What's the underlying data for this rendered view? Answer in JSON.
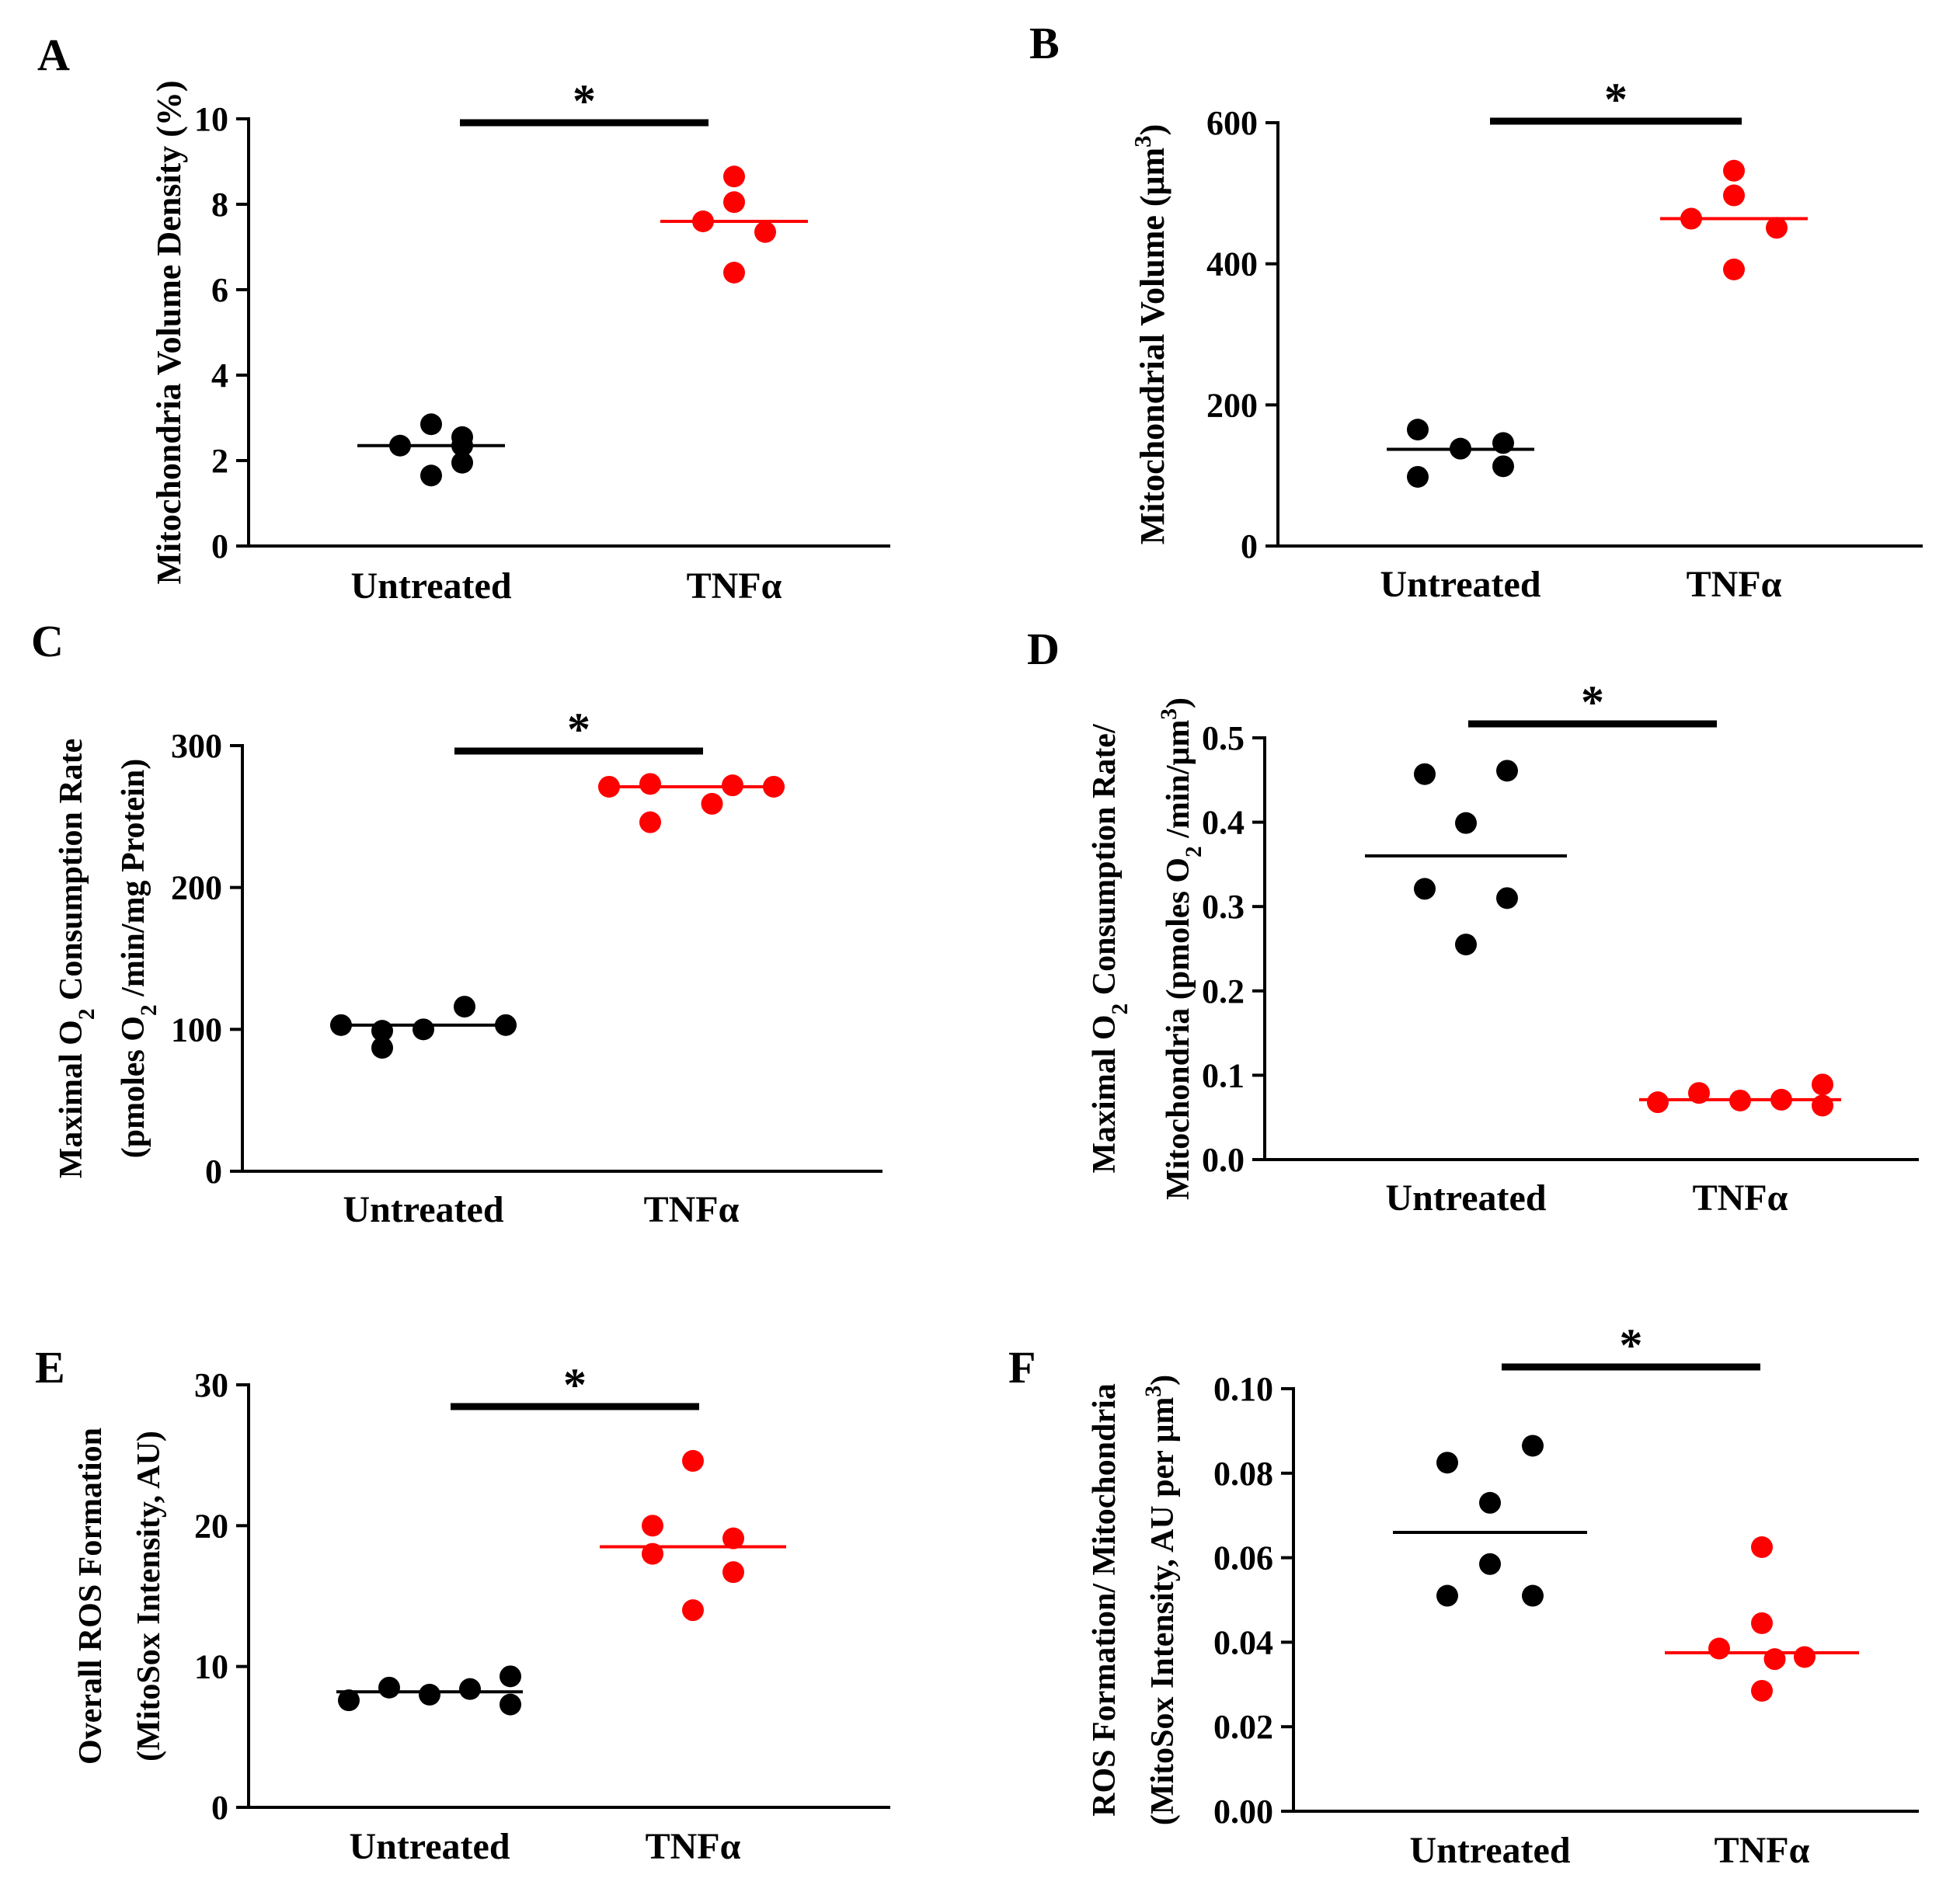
{
  "figure": {
    "colors": {
      "untreated": "#000000",
      "tnf": "#ff0000"
    }
  },
  "chart_data": [
    {
      "type": "scatter",
      "panel_label": "A",
      "ylabel_lines": [
        "Mitochondria Volume Density (%)"
      ],
      "ylim": [
        0,
        10
      ],
      "yticks": [
        "0",
        "2",
        "4",
        "6",
        "8",
        "10"
      ],
      "categories": [
        "Untreated",
        "TNFα"
      ],
      "significance": "*",
      "series": [
        {
          "name": "Untreated",
          "color": "#000000",
          "mean": 2.35,
          "points": [
            [
              0,
              2.85
            ],
            [
              -1,
              2.35
            ],
            [
              1,
              2.35
            ],
            [
              0,
              1.65
            ],
            [
              1,
              2.55
            ],
            [
              1,
              1.95
            ]
          ]
        },
        {
          "name": "TNFα",
          "color": "#ff0000",
          "mean": 7.6,
          "points": [
            [
              0,
              8.65
            ],
            [
              0,
              8.05
            ],
            [
              -1,
              7.6
            ],
            [
              1,
              7.35
            ],
            [
              0,
              6.4
            ]
          ]
        }
      ]
    },
    {
      "type": "scatter",
      "panel_label": "B",
      "ylabel_lines": [
        "Mitochondrial Volume (μm3)"
      ],
      "ylim": [
        0,
        600
      ],
      "yticks": [
        "0",
        "200",
        "400",
        "600"
      ],
      "categories": [
        "Untreated",
        "TNFα"
      ],
      "significance": "*",
      "series": [
        {
          "name": "Untreated",
          "color": "#000000",
          "mean": 137,
          "points": [
            [
              -1,
              165
            ],
            [
              0,
              138
            ],
            [
              1,
              146
            ],
            [
              -1,
              98
            ],
            [
              1,
              113
            ]
          ]
        },
        {
          "name": "TNFα",
          "color": "#ff0000",
          "mean": 464,
          "points": [
            [
              0,
              532
            ],
            [
              0,
              497
            ],
            [
              -1,
              464
            ],
            [
              1,
              451
            ],
            [
              0,
              392
            ]
          ]
        }
      ]
    },
    {
      "type": "scatter",
      "panel_label": "C",
      "ylabel_lines": [
        "Maximal O2 Consumption Rate",
        "(pmoles O2 /min/mg Protein)"
      ],
      "ylim": [
        0,
        300
      ],
      "yticks": [
        "0",
        "100",
        "200",
        "300"
      ],
      "categories": [
        "Untreated",
        "TNFα"
      ],
      "significance": "*",
      "series": [
        {
          "name": "Untreated",
          "color": "#000000",
          "mean": 103,
          "points": [
            [
              -2,
              103
            ],
            [
              -1,
              99
            ],
            [
              0,
              100
            ],
            [
              1,
              116
            ],
            [
              2,
              103
            ],
            [
              -1,
              87
            ]
          ]
        },
        {
          "name": "TNFα",
          "color": "#ff0000",
          "mean": 271,
          "points": [
            [
              -2,
              271
            ],
            [
              -1,
              273
            ],
            [
              1,
              272
            ],
            [
              2,
              271
            ],
            [
              -1,
              246
            ],
            [
              0.5,
              259
            ]
          ]
        }
      ]
    },
    {
      "type": "scatter",
      "panel_label": "D",
      "ylabel_lines": [
        "Maximal O2 Consumption Rate/",
        "Mitochondria (pmoles O2 /min/μm3)"
      ],
      "ylim": [
        0,
        0.5
      ],
      "yticks": [
        "0.0",
        "0.1",
        "0.2",
        "0.3",
        "0.4",
        "0.5"
      ],
      "categories": [
        "Untreated",
        "TNFα"
      ],
      "significance": "*",
      "series": [
        {
          "name": "Untreated",
          "color": "#000000",
          "mean": 0.36,
          "points": [
            [
              -1,
              0.457
            ],
            [
              1,
              0.461
            ],
            [
              0,
              0.399
            ],
            [
              -1,
              0.321
            ],
            [
              1,
              0.31
            ],
            [
              0,
              0.255
            ]
          ]
        },
        {
          "name": "TNFα",
          "color": "#ff0000",
          "mean": 0.071,
          "points": [
            [
              -2,
              0.068
            ],
            [
              -1,
              0.079
            ],
            [
              0,
              0.07
            ],
            [
              1,
              0.071
            ],
            [
              2,
              0.089
            ],
            [
              2,
              0.064
            ]
          ]
        }
      ]
    },
    {
      "type": "scatter",
      "panel_label": "E",
      "ylabel_lines": [
        "Overall ROS Formation",
        "(MitoSox Intensity, AU)"
      ],
      "ylim": [
        0,
        30
      ],
      "yticks": [
        "0",
        "10",
        "20",
        "30"
      ],
      "categories": [
        "Untreated",
        "TNFα"
      ],
      "significance": "*",
      "series": [
        {
          "name": "Untreated",
          "color": "#000000",
          "mean": 8.2,
          "points": [
            [
              -2,
              7.6
            ],
            [
              -1,
              8.5
            ],
            [
              0,
              8.0
            ],
            [
              1,
              8.4
            ],
            [
              2,
              9.3
            ],
            [
              2,
              7.3
            ]
          ]
        },
        {
          "name": "TNFα",
          "color": "#ff0000",
          "mean": 18.5,
          "points": [
            [
              0,
              24.6
            ],
            [
              -1,
              20.0
            ],
            [
              1,
              19.1
            ],
            [
              -1,
              18.0
            ],
            [
              1,
              16.7
            ],
            [
              0,
              14.0
            ]
          ]
        }
      ]
    },
    {
      "type": "scatter",
      "panel_label": "F",
      "ylabel_lines": [
        "ROS Formation/ Mitochondria",
        "(MitoSox Intensity, AU per μm3)"
      ],
      "ylim": [
        0,
        0.1
      ],
      "yticks": [
        "0.00",
        "0.02",
        "0.04",
        "0.06",
        "0.08",
        "0.10"
      ],
      "categories": [
        "Untreated",
        "TNFα"
      ],
      "significance": "*",
      "series": [
        {
          "name": "Untreated",
          "color": "#000000",
          "mean": 0.066,
          "points": [
            [
              -1,
              0.0825
            ],
            [
              1,
              0.0865
            ],
            [
              0,
              0.073
            ],
            [
              0,
              0.0585
            ],
            [
              -1,
              0.051
            ],
            [
              1,
              0.051
            ]
          ]
        },
        {
          "name": "TNFα",
          "color": "#ff0000",
          "mean": 0.0375,
          "points": [
            [
              0,
              0.0625
            ],
            [
              0,
              0.0445
            ],
            [
              -1,
              0.0385
            ],
            [
              0.3,
              0.036
            ],
            [
              1,
              0.0365
            ],
            [
              0,
              0.0285
            ]
          ]
        }
      ]
    }
  ]
}
